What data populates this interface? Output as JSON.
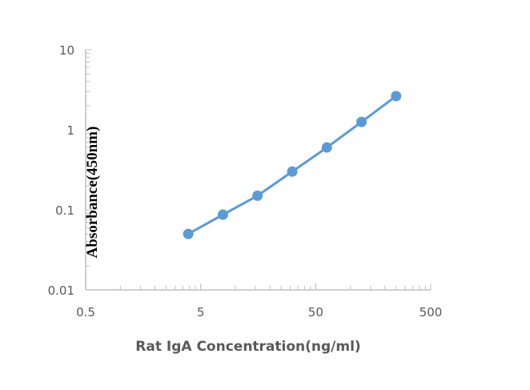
{
  "chart_data": {
    "type": "line",
    "title": "",
    "xlabel": "Rat IgA Concentration(ng/ml)",
    "ylabel": "Absorbance(450nm)",
    "xscale": "log",
    "yscale": "log",
    "xlim": [
      0.5,
      500
    ],
    "ylim": [
      0.01,
      10
    ],
    "xticks": [
      "0.5",
      "5",
      "50",
      "500"
    ],
    "yticks": [
      "0.01",
      "0.1",
      "1",
      "10"
    ],
    "grid": false,
    "legend": "none",
    "series": [
      {
        "color": "#5b9bd5",
        "x": [
          3.9,
          7.8,
          15.6,
          31.25,
          62.5,
          125,
          250
        ],
        "y": [
          0.05,
          0.087,
          0.15,
          0.3,
          0.6,
          1.25,
          2.63
        ]
      }
    ]
  }
}
